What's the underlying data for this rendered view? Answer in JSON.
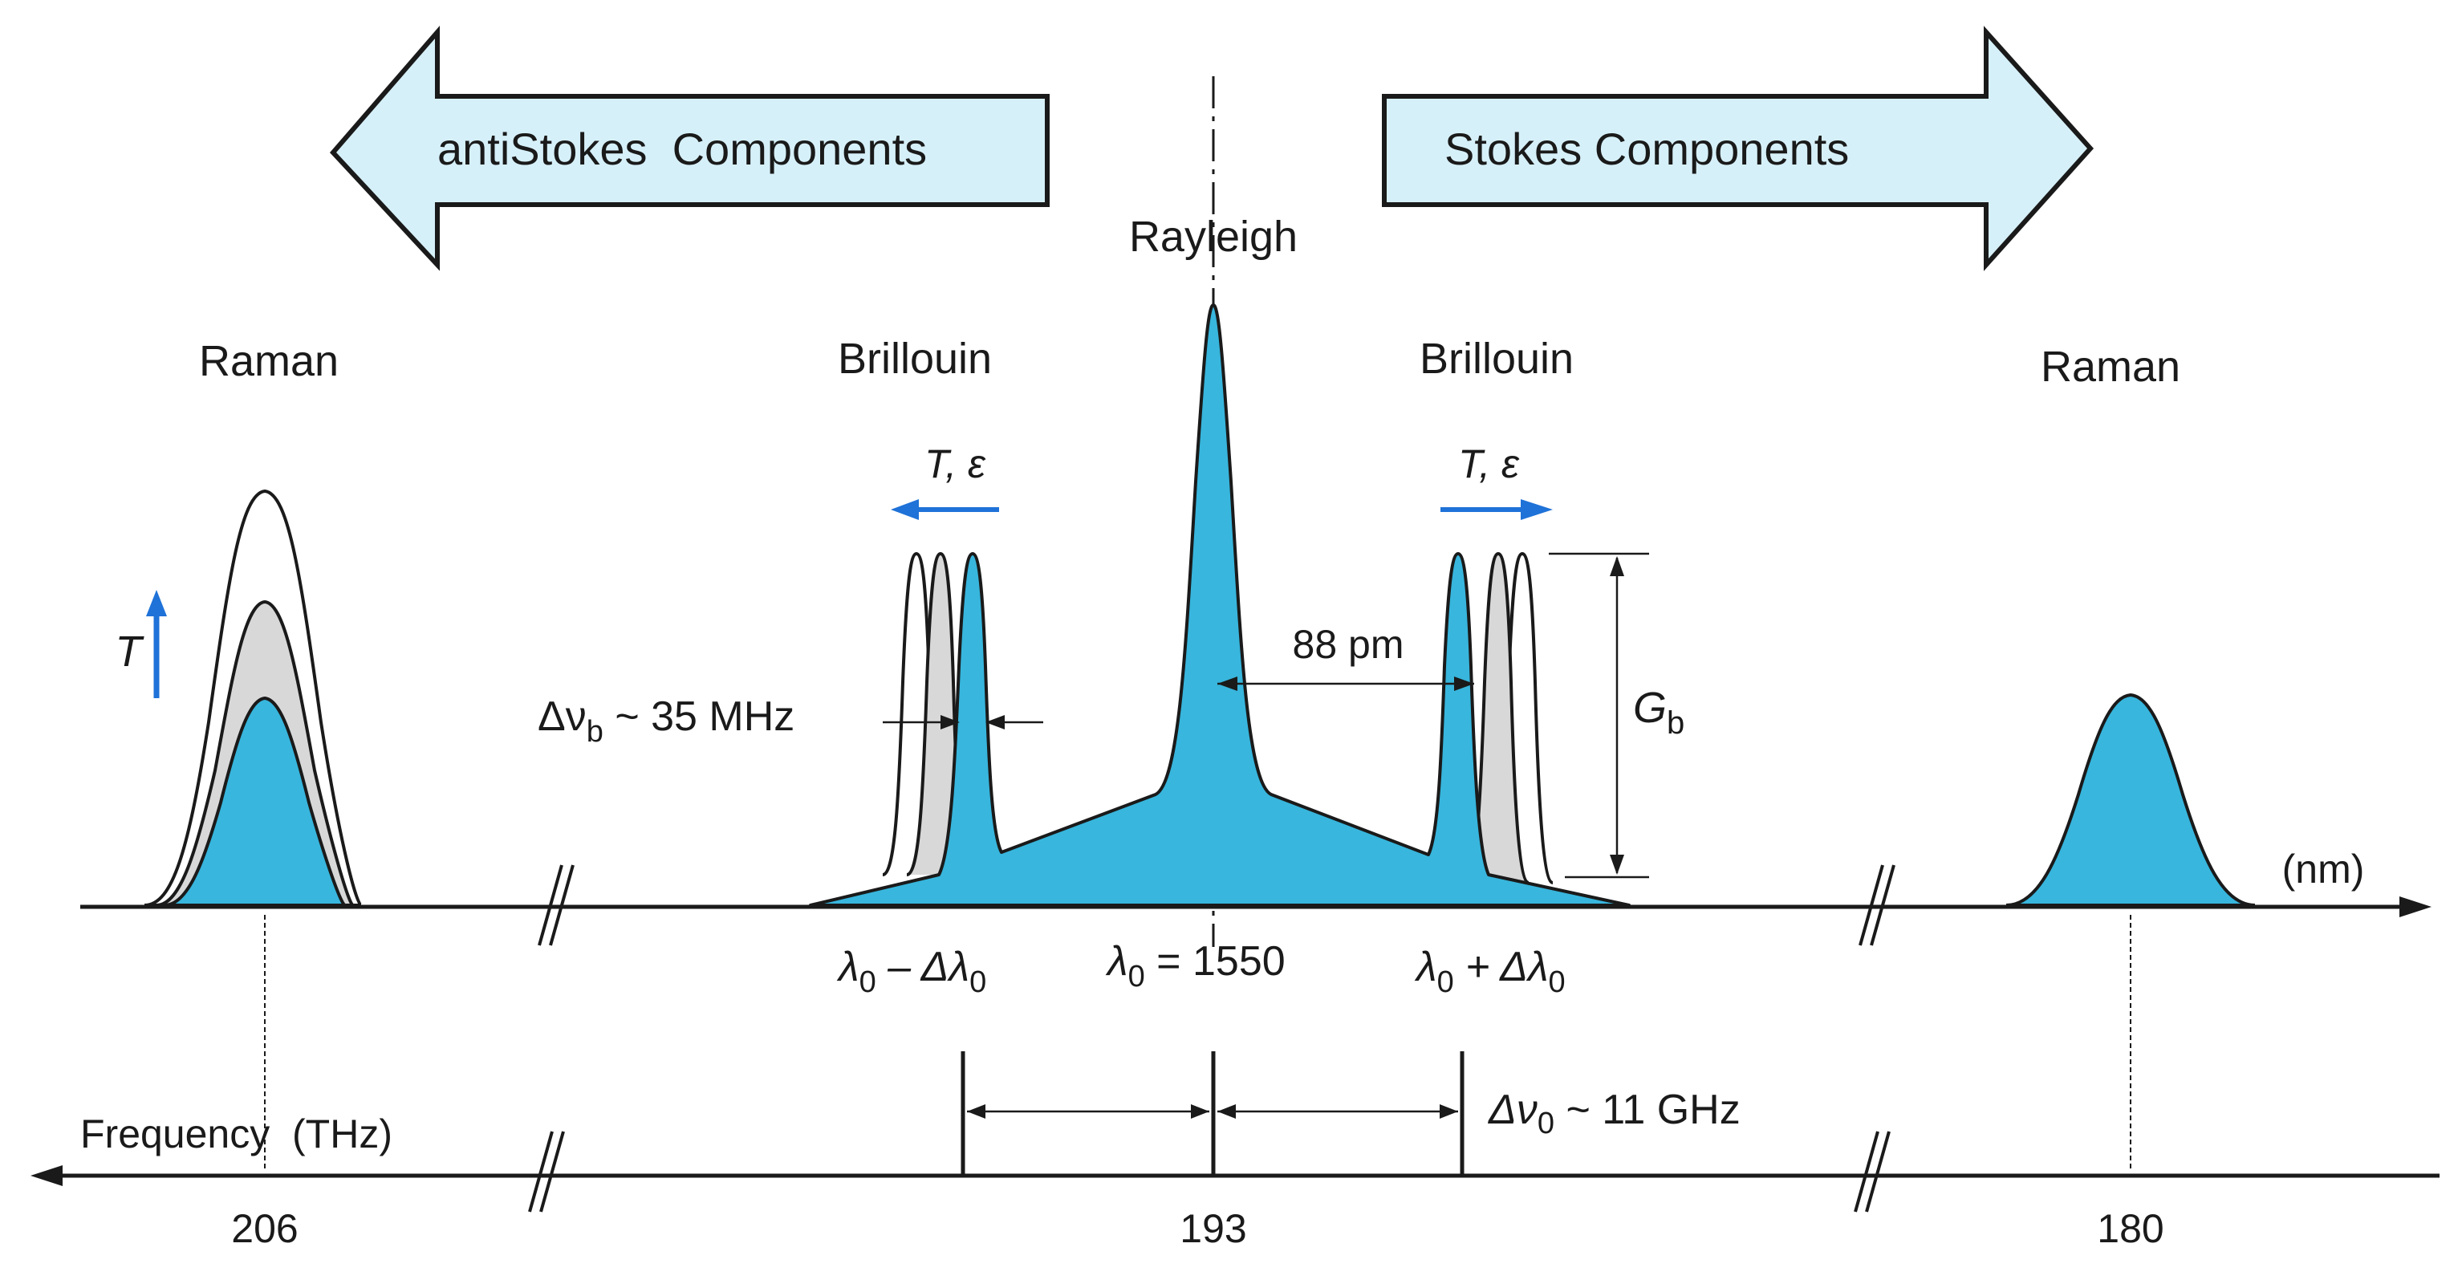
{
  "colors": {
    "peak_fill": "#38b6dd",
    "arrow_fill": "#d6f0f9",
    "shadow_fill": "#d8d8d8",
    "temp_arrow": "#1f72d8",
    "outline": "#1a1a1a"
  },
  "arrows": {
    "anti_stokes": "antiStokes  Components",
    "stokes": "Stokes Components"
  },
  "labels": {
    "rayleigh": "Rayleigh",
    "raman_left": "Raman",
    "raman_right": "Raman",
    "brillouin_left": "Brillouin",
    "brillouin_right": "Brillouin",
    "temp_strain": "T, ε",
    "temp": "T",
    "delta_nu_b": "Δν",
    "delta_nu_b_sub": "b",
    "delta_nu_b_value": " ~ 35 MHz",
    "spacing_pm": "88 pm",
    "gain": "G",
    "gain_sub": "b",
    "wavelength_unit": "(nm)",
    "lambda_minus": "λ",
    "lambda_minus_sub": "0",
    "lambda_minus_rest": " – Δλ",
    "lambda_minus_sub2": "0",
    "lambda_center": "λ",
    "lambda_center_sub": "0",
    "lambda_center_rest": " = 1550",
    "lambda_plus": "λ",
    "lambda_plus_sub": "0",
    "lambda_plus_rest": " + Δλ",
    "lambda_plus_sub2": "0",
    "delta_nu_0": "Δν",
    "delta_nu_0_sub": "0",
    "delta_nu_0_value": " ~ 11 GHz",
    "frequency_axis": "Frequency  (THz)",
    "freq_206": "206",
    "freq_193": "193",
    "freq_180": "180"
  }
}
